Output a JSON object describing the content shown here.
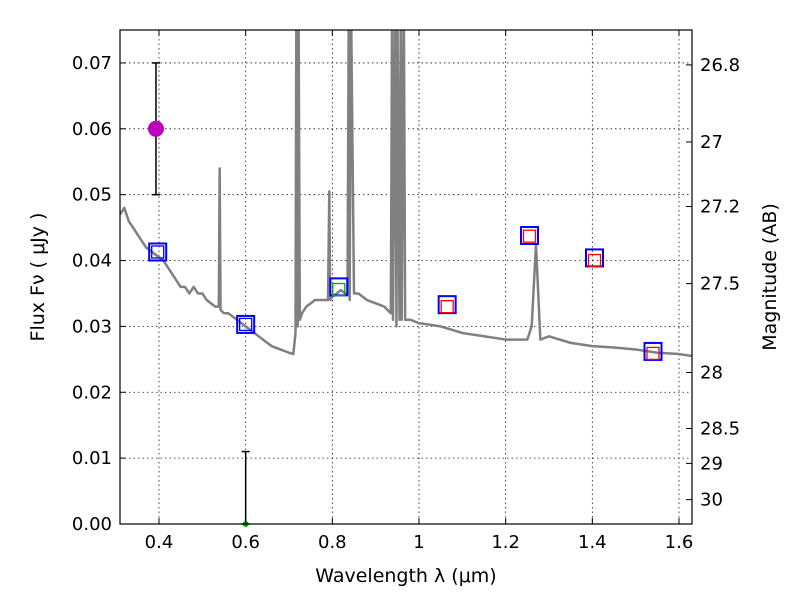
{
  "chart_data": {
    "type": "scatter",
    "title": "",
    "xlabel": "Wavelength  λ (μm)",
    "ylabel": "Flux  Fν  ( μJy )",
    "ylabel_right": "Magnitude (AB)",
    "xlim": [
      0.31,
      1.63
    ],
    "ylim": [
      0.0,
      0.075
    ],
    "grid": true,
    "x_ticks": [
      0.4,
      0.6,
      0.8,
      1.0,
      1.2,
      1.4,
      1.6
    ],
    "x_tick_labels": [
      "0.4",
      "0.6",
      "0.8",
      "1",
      "1.2",
      "1.4",
      "1.6"
    ],
    "y_ticks": [
      0.0,
      0.01,
      0.02,
      0.03,
      0.04,
      0.05,
      0.06,
      0.07
    ],
    "y_tick_labels": [
      "0.00",
      "0.01",
      "0.02",
      "0.03",
      "0.04",
      "0.05",
      "0.06",
      "0.07"
    ],
    "mag_ticks": [
      {
        "label": "26.8",
        "flux": 0.0697
      },
      {
        "label": "27",
        "flux": 0.058
      },
      {
        "label": "27.2",
        "flux": 0.0482
      },
      {
        "label": "27.5",
        "flux": 0.0365
      },
      {
        "label": "28",
        "flux": 0.023
      },
      {
        "label": "28.5",
        "flux": 0.0145
      },
      {
        "label": "29",
        "flux": 0.0092
      },
      {
        "label": "30",
        "flux": 0.0037
      }
    ],
    "series": [
      {
        "name": "model spectrum",
        "kind": "line",
        "color": "#808080",
        "x": [
          0.31,
          0.32,
          0.33,
          0.34,
          0.35,
          0.36,
          0.37,
          0.38,
          0.39,
          0.4,
          0.41,
          0.42,
          0.43,
          0.44,
          0.45,
          0.46,
          0.47,
          0.48,
          0.49,
          0.5,
          0.51,
          0.52,
          0.53,
          0.538,
          0.54,
          0.542,
          0.55,
          0.56,
          0.58,
          0.6,
          0.62,
          0.64,
          0.66,
          0.68,
          0.7,
          0.71,
          0.715,
          0.717,
          0.72,
          0.722,
          0.725,
          0.73,
          0.74,
          0.75,
          0.76,
          0.78,
          0.79,
          0.793,
          0.795,
          0.8,
          0.81,
          0.82,
          0.83,
          0.835,
          0.838,
          0.84,
          0.843,
          0.85,
          0.86,
          0.88,
          0.9,
          0.92,
          0.935,
          0.938,
          0.94,
          0.945,
          0.948,
          0.95,
          0.955,
          0.958,
          0.96,
          0.965,
          0.968,
          0.97,
          0.98,
          1.0,
          1.05,
          1.1,
          1.15,
          1.2,
          1.25,
          1.26,
          1.27,
          1.28,
          1.3,
          1.35,
          1.4,
          1.45,
          1.5,
          1.55,
          1.6,
          1.63
        ],
        "y": [
          0.047,
          0.048,
          0.046,
          0.045,
          0.044,
          0.043,
          0.042,
          0.0415,
          0.041,
          0.0405,
          0.04,
          0.039,
          0.038,
          0.037,
          0.036,
          0.036,
          0.035,
          0.036,
          0.035,
          0.035,
          0.034,
          0.0335,
          0.033,
          0.033,
          0.054,
          0.0325,
          0.032,
          0.032,
          0.031,
          0.03,
          0.029,
          0.028,
          0.027,
          0.0265,
          0.026,
          0.0258,
          0.029,
          0.08,
          0.03,
          0.08,
          0.031,
          0.032,
          0.033,
          0.0335,
          0.034,
          0.034,
          0.034,
          0.0505,
          0.034,
          0.0345,
          0.035,
          0.0355,
          0.035,
          0.035,
          0.08,
          0.034,
          0.08,
          0.035,
          0.035,
          0.034,
          0.0335,
          0.033,
          0.032,
          0.08,
          0.031,
          0.08,
          0.03,
          0.08,
          0.031,
          0.08,
          0.031,
          0.08,
          0.031,
          0.031,
          0.031,
          0.0305,
          0.03,
          0.029,
          0.0285,
          0.028,
          0.028,
          0.03,
          0.0425,
          0.028,
          0.0285,
          0.0275,
          0.027,
          0.0268,
          0.0265,
          0.026,
          0.0258,
          0.0255
        ]
      },
      {
        "name": "observed photometry",
        "kind": "square",
        "color": "#0000ff",
        "points": [
          [
            0.397,
            0.0413
          ],
          [
            0.6,
            0.0303
          ],
          [
            0.815,
            0.036
          ],
          [
            1.065,
            0.0333
          ],
          [
            1.255,
            0.0438
          ],
          [
            1.405,
            0.0404
          ],
          [
            1.54,
            0.0262
          ]
        ]
      },
      {
        "name": "model photometry",
        "kind": "square-small",
        "color_list": [
          "#0000ff",
          "#0000ff",
          "#00aa00",
          "#ff0000",
          "#ff0000",
          "#ff0000",
          "#ff0000"
        ],
        "points": [
          [
            0.397,
            0.0413
          ],
          [
            0.6,
            0.0303
          ],
          [
            0.815,
            0.0356
          ],
          [
            1.065,
            0.033
          ],
          [
            1.255,
            0.0437
          ],
          [
            1.405,
            0.04
          ],
          [
            1.54,
            0.0259
          ]
        ]
      },
      {
        "name": "u-band detection",
        "kind": "errorbar-point",
        "color": "#bf00bf",
        "points": [
          {
            "x": 0.393,
            "y": 0.06,
            "ylow": 0.05,
            "yhigh": 0.07
          }
        ]
      },
      {
        "name": "upper limit",
        "kind": "errorbar-point",
        "color": "#00aa00",
        "points": [
          {
            "x": 0.6,
            "y": 0.0,
            "ylow": 0.0,
            "yhigh": 0.011
          }
        ]
      }
    ]
  }
}
